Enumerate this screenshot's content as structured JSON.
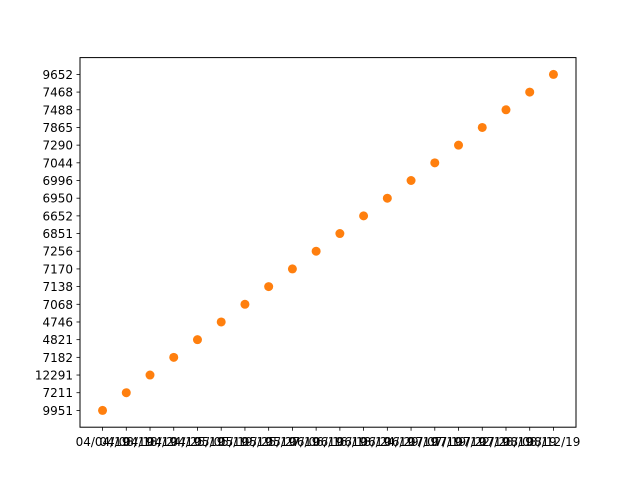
{
  "chart_data": {
    "type": "scatter",
    "categories": [
      "04/04/19",
      "04/08/19",
      "04/18/19",
      "04/24/19",
      "04/25/19",
      "05/05/19",
      "05/19/19",
      "05/25/19",
      "05/27/19",
      "06/06/19",
      "06/16/19",
      "06/18/19",
      "06/24/19",
      "06/29/19",
      "07/07/19",
      "07/19/19",
      "07/22/19",
      "07/28/19",
      "08/08/19",
      "08/12/19"
    ],
    "values": [
      9951,
      7211,
      12291,
      7182,
      4821,
      4746,
      7068,
      7138,
      7170,
      7256,
      6851,
      6652,
      6950,
      6996,
      7044,
      7290,
      7865,
      7488,
      7468,
      9652
    ],
    "y_axis": "categorical",
    "color": "#ff7f0e"
  }
}
